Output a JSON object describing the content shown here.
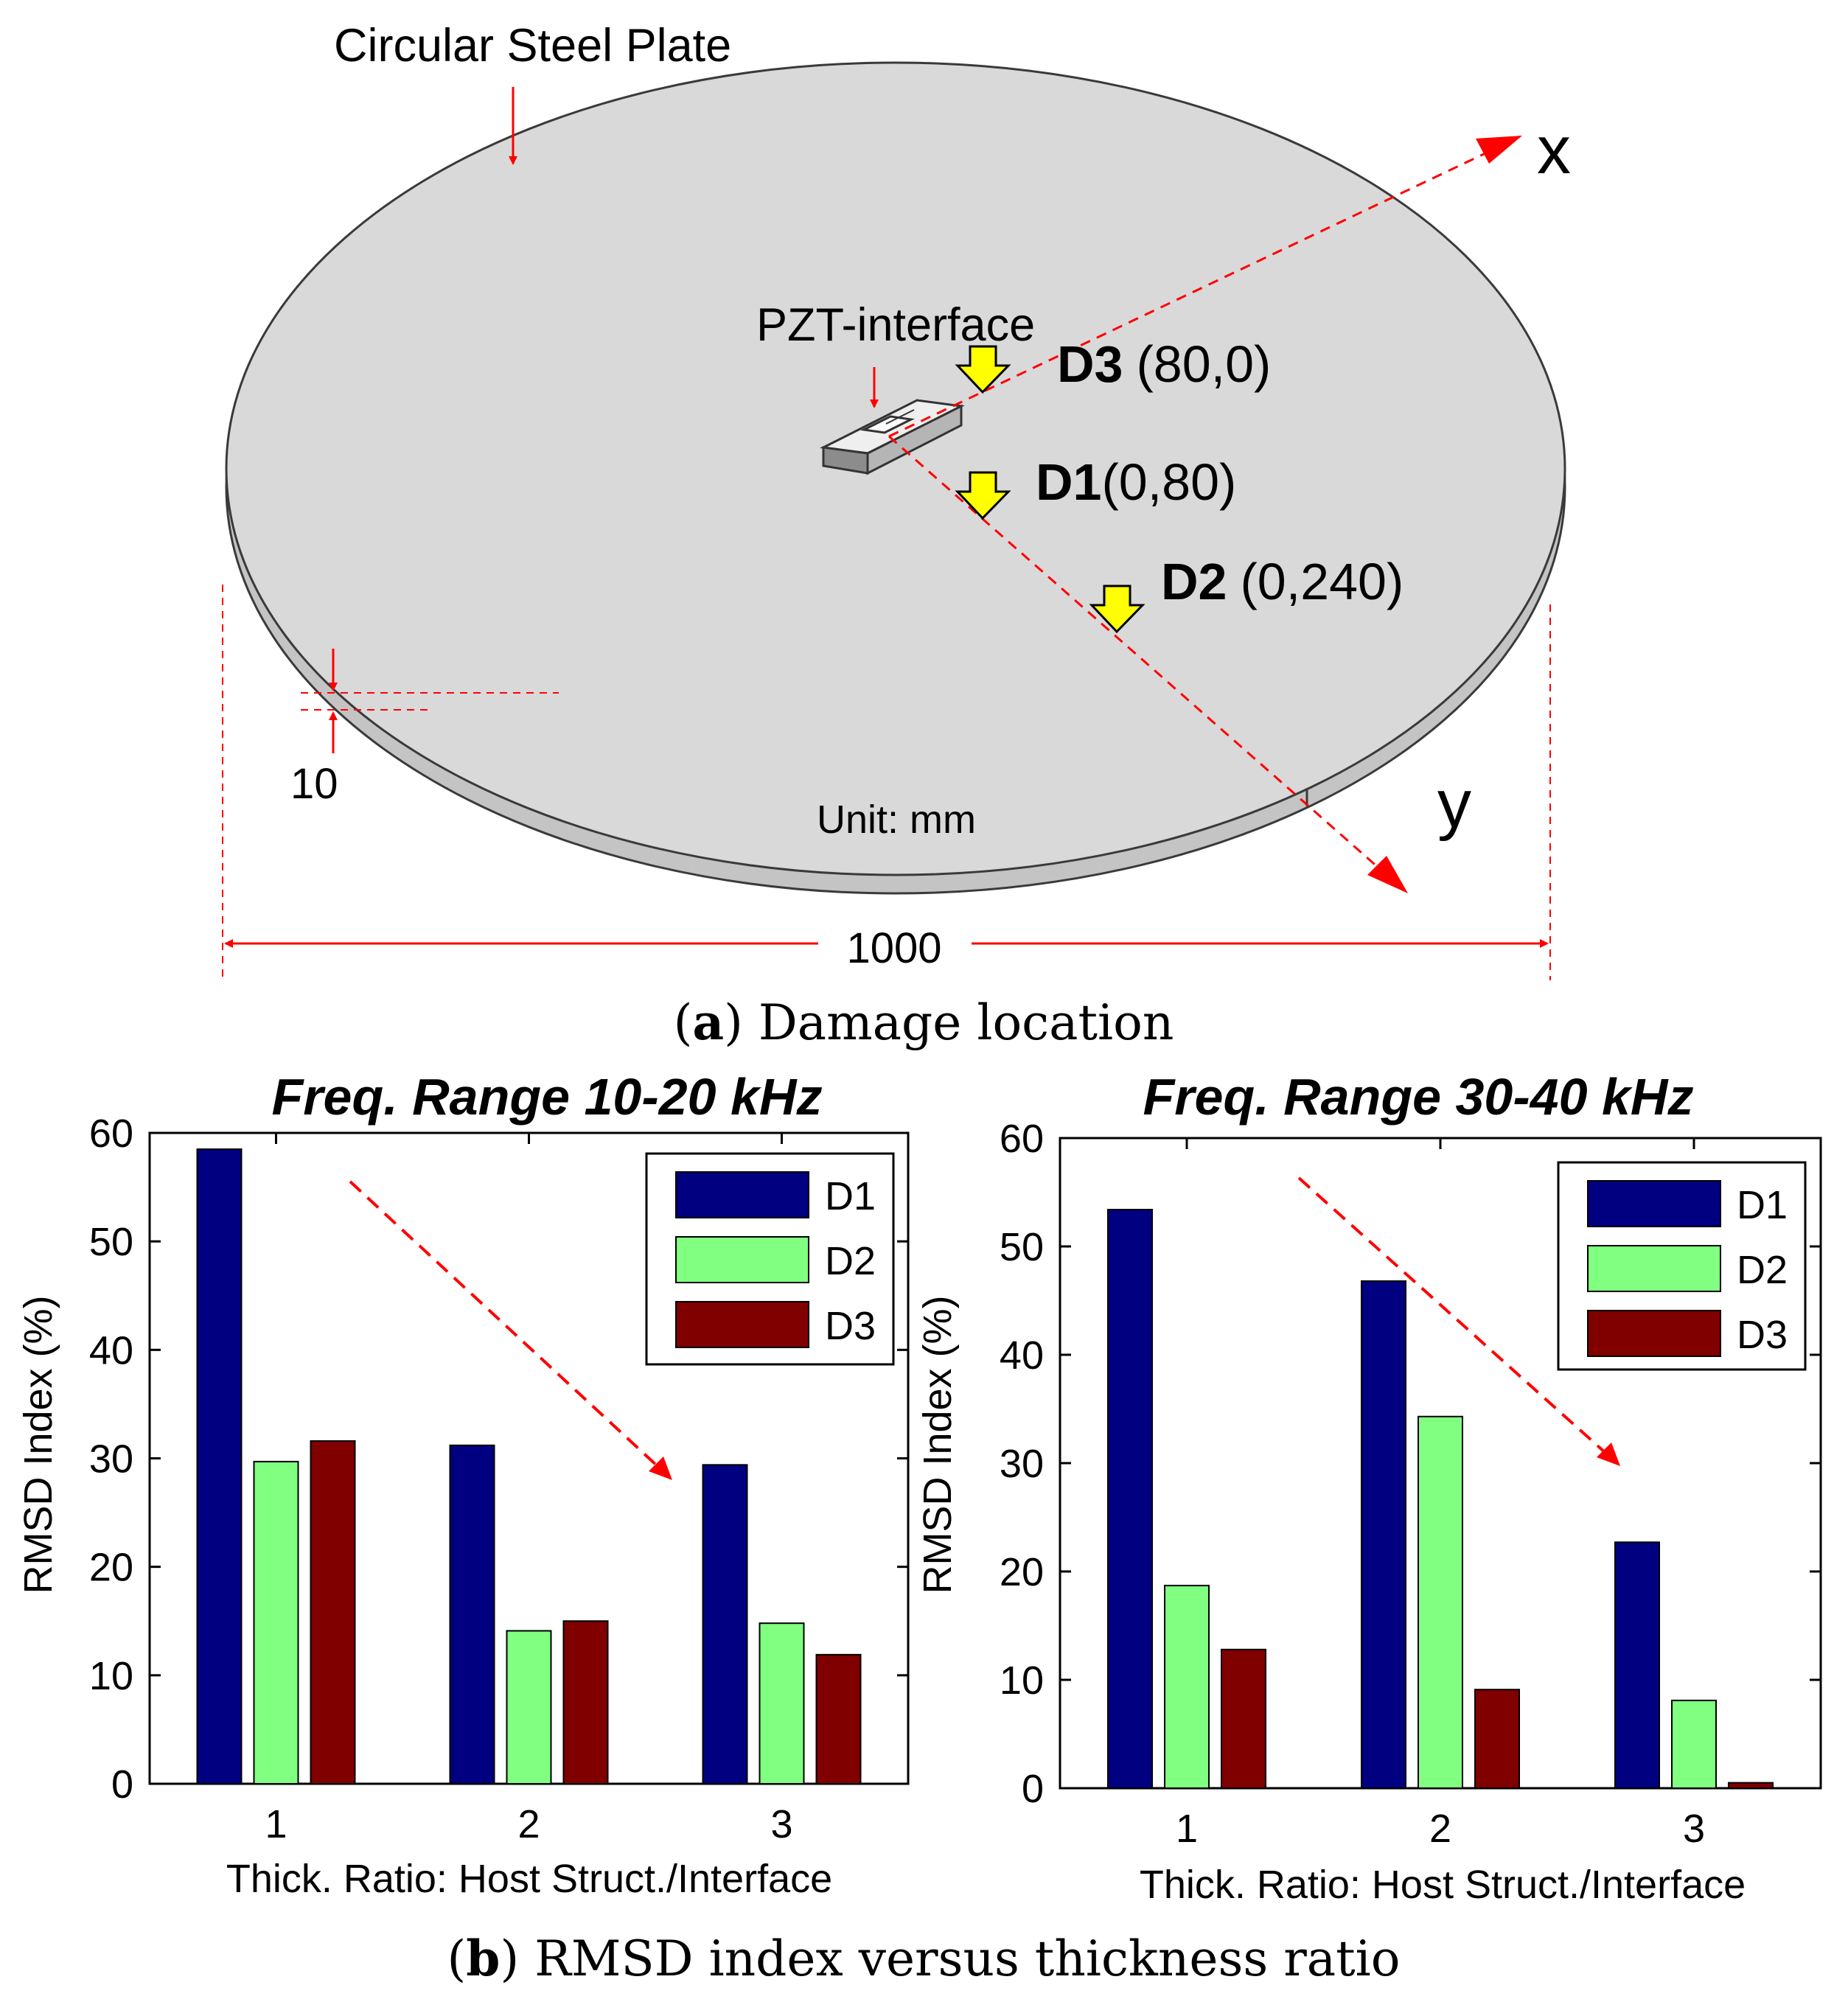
{
  "diagram": {
    "plate_label": "Circular Steel Plate",
    "pzt_label": "PZT-interface",
    "axis_x": "x",
    "axis_y": "y",
    "unit_label": "Unit: mm",
    "thickness_label": "10",
    "diameter_label": "1000",
    "damages": [
      {
        "id": "D3",
        "coords": "(80,0)"
      },
      {
        "id": "D1",
        "coords": "(0,80)"
      },
      {
        "id": "D2",
        "coords": "(0,240)"
      }
    ],
    "caption_letter": "a",
    "caption_text": ") Damage location",
    "colors": {
      "plate": "#d9d9d9",
      "red": "#ff0000",
      "arrow": "#ffff00"
    }
  },
  "chart_caption": {
    "letter": "b",
    "text": ") RMSD index versus thickness ratio"
  },
  "chart_data": [
    {
      "type": "bar",
      "title": "Freq. Range 10-20 kHz",
      "xlabel": "Thick. Ratio: Host Struct./Interface",
      "ylabel": "RMSD Index (%)",
      "categories": [
        "1",
        "2",
        "3"
      ],
      "ylim": [
        0,
        60
      ],
      "yticks": [
        "0",
        "10",
        "20",
        "30",
        "40",
        "50",
        "60"
      ],
      "series": [
        {
          "name": "D1",
          "color": "#000080",
          "values": [
            58.5,
            31.2,
            29.4
          ]
        },
        {
          "name": "D2",
          "color": "#80ff80",
          "values": [
            29.7,
            14.1,
            14.8
          ]
        },
        {
          "name": "D3",
          "color": "#800000",
          "values": [
            31.6,
            15.0,
            11.9
          ]
        }
      ],
      "legend": "top-right"
    },
    {
      "type": "bar",
      "title": "Freq. Range 30-40 kHz",
      "xlabel": "Thick. Ratio: Host Struct./Interface",
      "ylabel": "RMSD Index (%)",
      "categories": [
        "1",
        "2",
        "3"
      ],
      "ylim": [
        0,
        60
      ],
      "yticks": [
        "0",
        "10",
        "20",
        "30",
        "40",
        "50",
        "60"
      ],
      "series": [
        {
          "name": "D1",
          "color": "#000080",
          "values": [
            53.4,
            46.8,
            22.7
          ]
        },
        {
          "name": "D2",
          "color": "#80ff80",
          "values": [
            18.7,
            34.3,
            8.1
          ]
        },
        {
          "name": "D3",
          "color": "#800000",
          "values": [
            12.8,
            9.1,
            0.5
          ]
        }
      ],
      "legend": "top-right"
    }
  ]
}
